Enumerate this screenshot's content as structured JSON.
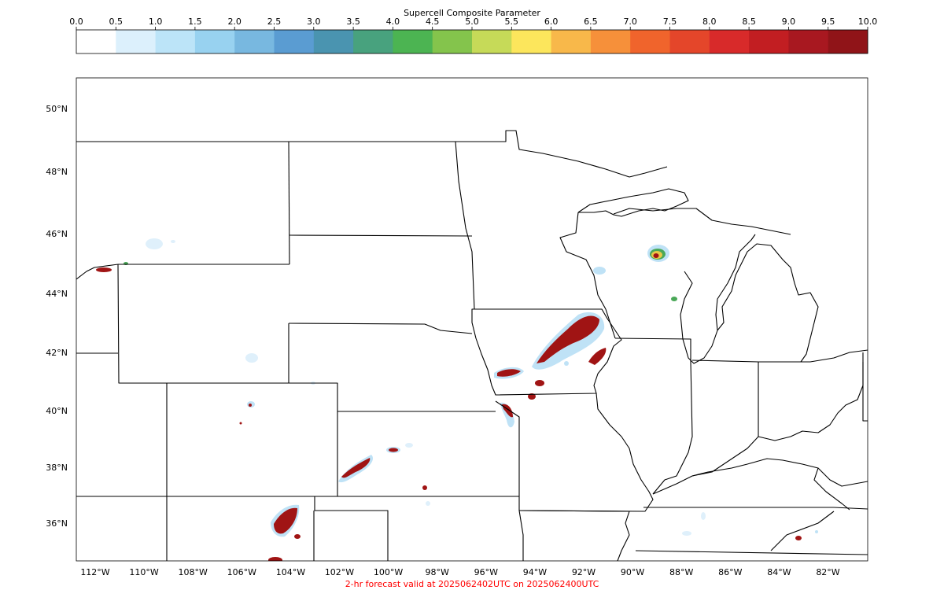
{
  "colorbar": {
    "title": "Supercell Composite Parameter",
    "ticks": [
      "0.0",
      "0.5",
      "1.0",
      "1.5",
      "2.0",
      "2.5",
      "3.0",
      "3.5",
      "4.0",
      "4.5",
      "5.0",
      "5.5",
      "6.0",
      "6.5",
      "7.0",
      "7.5",
      "8.0",
      "8.5",
      "9.0",
      "9.5",
      "10.0"
    ],
    "colors": [
      "#ffffff",
      "#dcf0fc",
      "#bce4f8",
      "#98d2f0",
      "#78b8e0",
      "#5a9cd2",
      "#4a94b0",
      "#48a27e",
      "#4cb452",
      "#84c44c",
      "#c6da58",
      "#fce65c",
      "#f8b84a",
      "#f6903a",
      "#f0642c",
      "#e4462a",
      "#d82a2a",
      "#c21e22",
      "#a81820",
      "#901418"
    ]
  },
  "map": {
    "lat_labels": [
      "50°N",
      "48°N",
      "46°N",
      "44°N",
      "42°N",
      "40°N",
      "38°N",
      "36°N"
    ],
    "lon_labels": [
      "112°W",
      "110°W",
      "108°W",
      "106°W",
      "104°W",
      "102°W",
      "100°W",
      "98°W",
      "96°W",
      "94°W",
      "92°W",
      "90°W",
      "88°W",
      "86°W",
      "84°W",
      "82°W"
    ],
    "palette": {
      "high": "#a01414",
      "mid": "#e8c848",
      "green": "#4aa858",
      "low": "#bfe2f6",
      "faint": "#dff0fb"
    }
  },
  "footer": {
    "caption": "2-hr forecast valid at 2025062402UTC on 2025062400UTC",
    "caption_color": "#ff0000"
  }
}
